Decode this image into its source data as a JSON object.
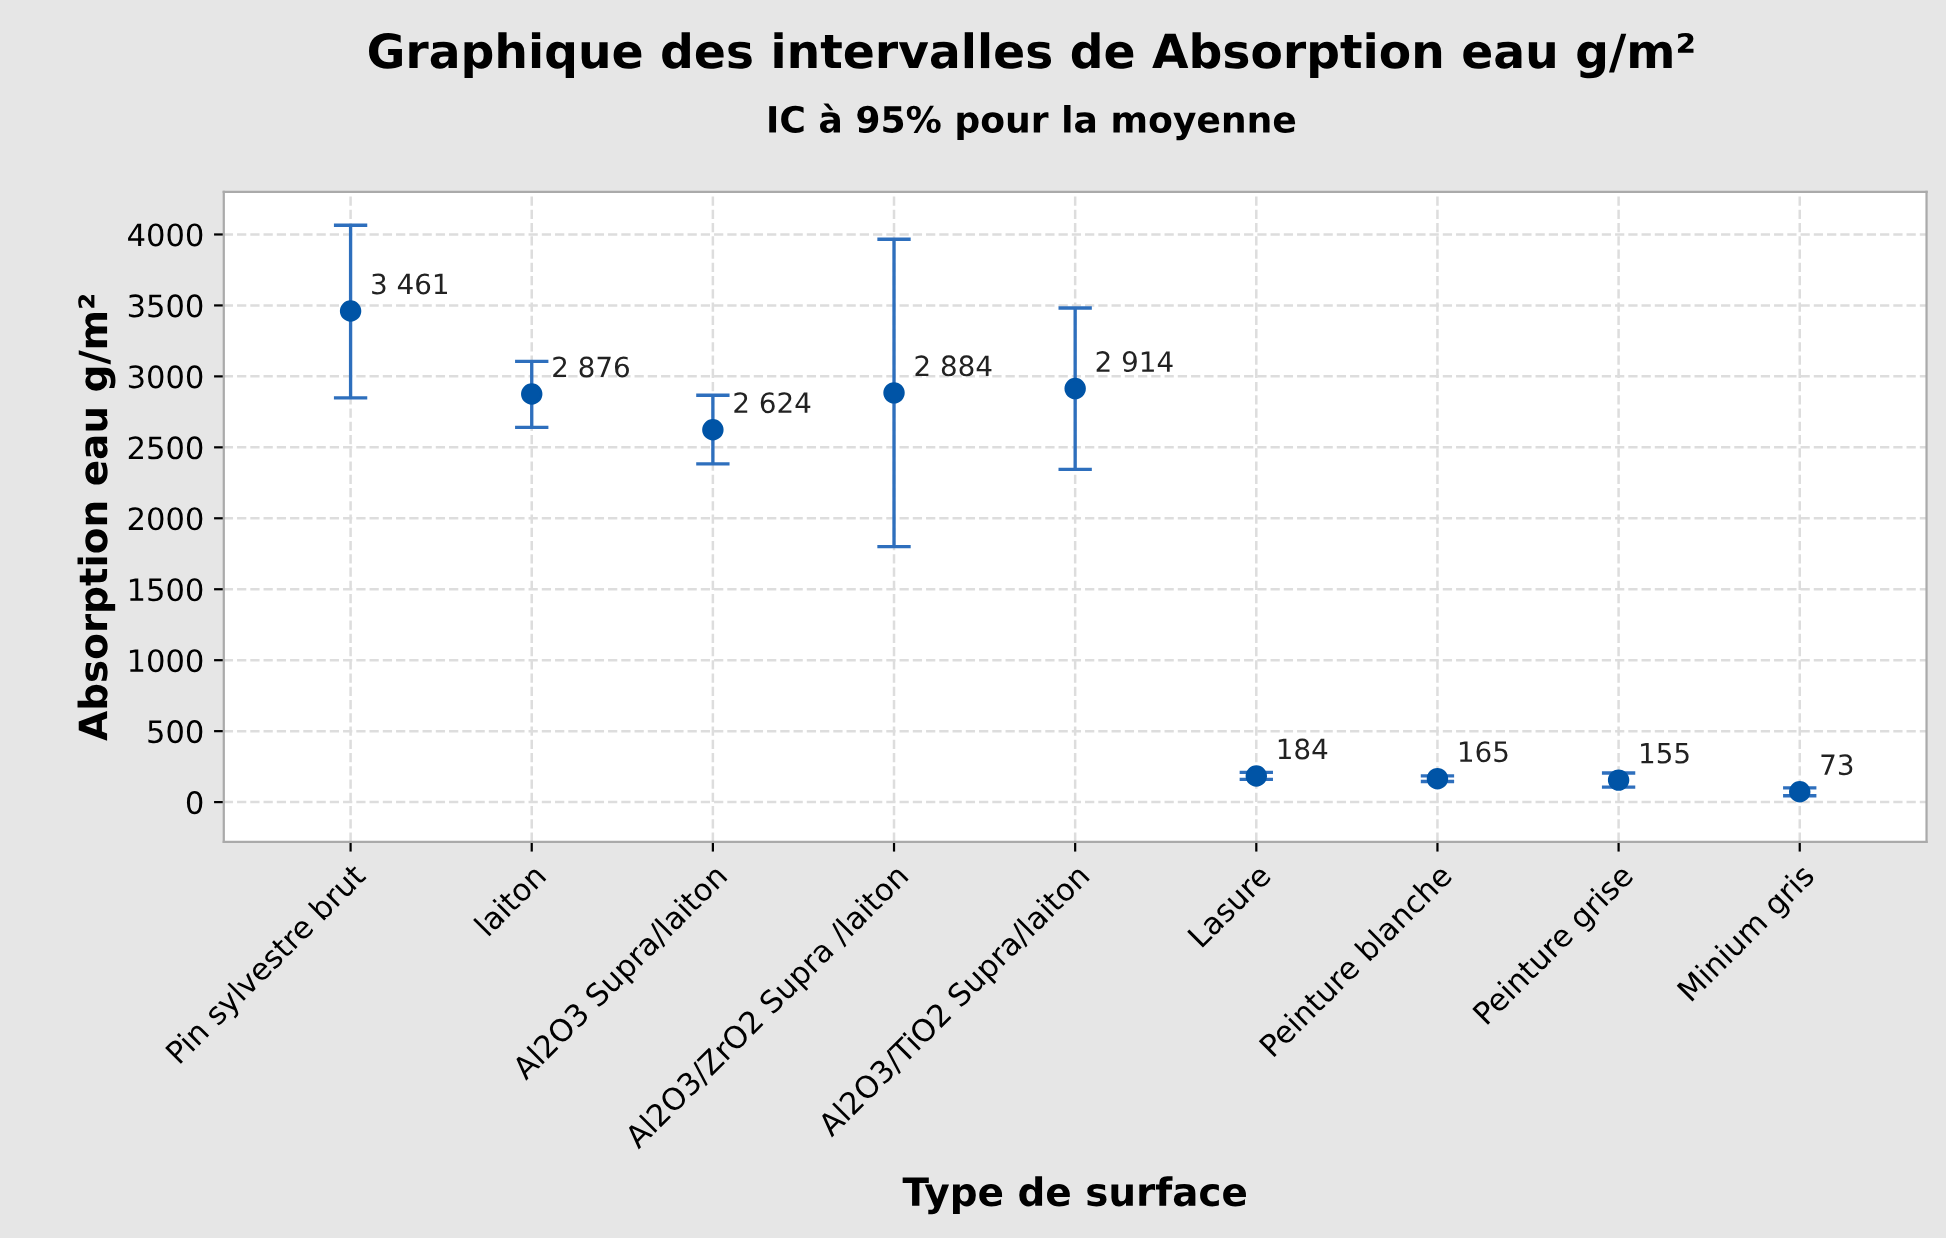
{
  "chart_data": {
    "type": "scatter",
    "title": "Graphique des intervalles de Absorption eau g/m²",
    "subtitle": "IC à 95% pour la moyenne",
    "xlabel": "Type de surface",
    "ylabel": "Absorption eau g/m²",
    "categories": [
      "Pin sylvestre brut",
      "laiton",
      "Al2O3 Supra/laiton",
      "Al2O3/ZrO2 Supra /laiton",
      "Al2O3/TiO2 Supra/laiton",
      "Lasure",
      "Peinture blanche",
      "Peinture grise",
      "Minium gris"
    ],
    "values": [
      3461,
      2876,
      2624,
      2884,
      2914,
      184,
      165,
      155,
      73
    ],
    "errors": [
      [
        2848,
        4065
      ],
      [
        2641,
        3106
      ],
      [
        2383,
        2867
      ],
      [
        1800,
        3966
      ],
      [
        2345,
        3482
      ],
      [
        160,
        210
      ],
      [
        145,
        185
      ],
      [
        105,
        205
      ],
      [
        45,
        100
      ]
    ],
    "value_labels": [
      "3 461",
      "2 876",
      "2 624",
      "2 884",
      "2 914",
      "184",
      "165",
      "155",
      "73"
    ],
    "color": "#0054a6",
    "ylim": [
      -280,
      4300
    ],
    "yticks": [
      0,
      500,
      1000,
      1500,
      2000,
      2500,
      3000,
      3500,
      4000
    ],
    "grid": true,
    "marker": "circle"
  }
}
